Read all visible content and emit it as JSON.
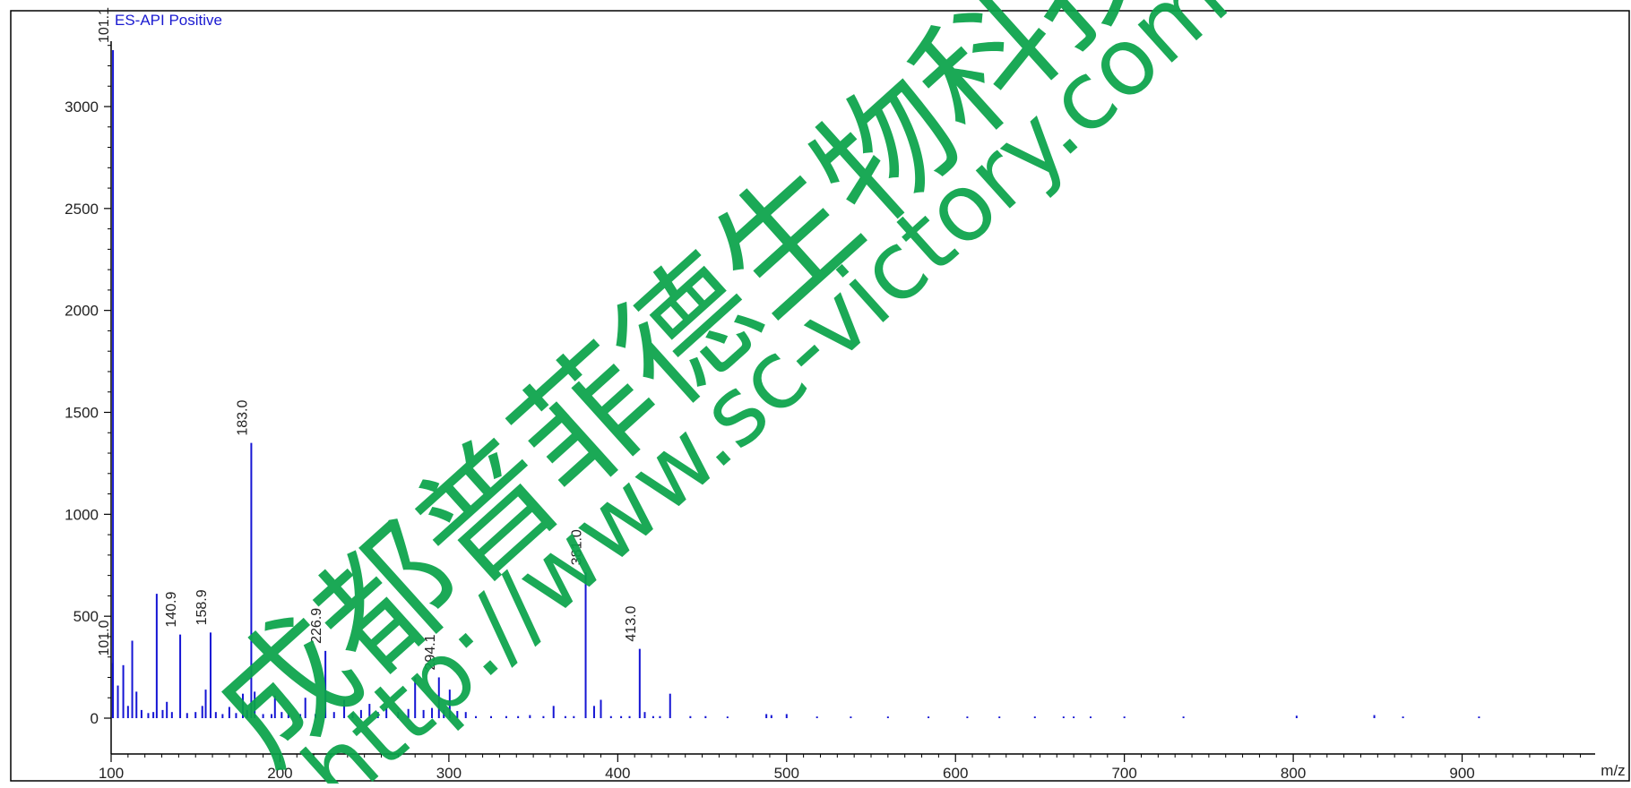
{
  "chart_data": {
    "type": "bar",
    "mode_label": "ES-API Positive",
    "xlabel": "m/z",
    "xlim": [
      100,
      1000
    ],
    "ylim": [
      -30,
      3350
    ],
    "x_ticks": [
      100,
      200,
      300,
      400,
      500,
      600,
      700,
      800,
      900
    ],
    "y_ticks": [
      0,
      500,
      1000,
      1500,
      2000,
      2500,
      3000
    ],
    "grid": false,
    "legend": "none",
    "colors": {
      "series": "#1515d4",
      "text": "#222222",
      "axis": "#000000",
      "watermark": "#0aa34a"
    },
    "peaks": [
      {
        "x": 101.1,
        "y": 3300,
        "label": "101.1"
      },
      {
        "x": 101.0,
        "y": 270,
        "label": "101.0"
      },
      {
        "x": 104.0,
        "y": 160
      },
      {
        "x": 107.2,
        "y": 260
      },
      {
        "x": 110.0,
        "y": 60
      },
      {
        "x": 112.5,
        "y": 380
      },
      {
        "x": 115.0,
        "y": 130
      },
      {
        "x": 118.0,
        "y": 40
      },
      {
        "x": 122.0,
        "y": 25
      },
      {
        "x": 125.0,
        "y": 30
      },
      {
        "x": 127.0,
        "y": 610
      },
      {
        "x": 130.5,
        "y": 40
      },
      {
        "x": 133.0,
        "y": 80
      },
      {
        "x": 136.0,
        "y": 30
      },
      {
        "x": 140.9,
        "y": 410,
        "label": "140.9"
      },
      {
        "x": 145.0,
        "y": 25
      },
      {
        "x": 150.0,
        "y": 30
      },
      {
        "x": 154.0,
        "y": 60
      },
      {
        "x": 156.0,
        "y": 140
      },
      {
        "x": 158.9,
        "y": 420,
        "label": "158.9"
      },
      {
        "x": 162.0,
        "y": 30
      },
      {
        "x": 166.0,
        "y": 20
      },
      {
        "x": 170.0,
        "y": 55
      },
      {
        "x": 174.0,
        "y": 25
      },
      {
        "x": 178.0,
        "y": 120
      },
      {
        "x": 180.5,
        "y": 40
      },
      {
        "x": 183.0,
        "y": 1350,
        "label": "183.0"
      },
      {
        "x": 185.0,
        "y": 130
      },
      {
        "x": 190.0,
        "y": 20
      },
      {
        "x": 195.0,
        "y": 20
      },
      {
        "x": 197.0,
        "y": 110
      },
      {
        "x": 201.0,
        "y": 30
      },
      {
        "x": 205.0,
        "y": 25
      },
      {
        "x": 212.0,
        "y": 20
      },
      {
        "x": 215.0,
        "y": 100
      },
      {
        "x": 221.0,
        "y": 20
      },
      {
        "x": 226.9,
        "y": 330,
        "label": "226.9"
      },
      {
        "x": 232.0,
        "y": 30
      },
      {
        "x": 238.0,
        "y": 90
      },
      {
        "x": 243.0,
        "y": 25
      },
      {
        "x": 248.0,
        "y": 40
      },
      {
        "x": 253.0,
        "y": 70
      },
      {
        "x": 258.0,
        "y": 30
      },
      {
        "x": 263.0,
        "y": 50
      },
      {
        "x": 270.0,
        "y": 30
      },
      {
        "x": 276.0,
        "y": 45
      },
      {
        "x": 280.0,
        "y": 200
      },
      {
        "x": 285.0,
        "y": 40
      },
      {
        "x": 290.0,
        "y": 50
      },
      {
        "x": 294.1,
        "y": 200,
        "label": "294.1"
      },
      {
        "x": 297.0,
        "y": 40
      },
      {
        "x": 300.5,
        "y": 140
      },
      {
        "x": 305.0,
        "y": 35
      },
      {
        "x": 310.0,
        "y": 30
      },
      {
        "x": 316.0,
        "y": 10
      },
      {
        "x": 325.0,
        "y": 10
      },
      {
        "x": 334.0,
        "y": 10
      },
      {
        "x": 341.0,
        "y": 10
      },
      {
        "x": 348.0,
        "y": 15
      },
      {
        "x": 356.0,
        "y": 10
      },
      {
        "x": 362.0,
        "y": 60
      },
      {
        "x": 369.0,
        "y": 10
      },
      {
        "x": 374.0,
        "y": 10
      },
      {
        "x": 381.0,
        "y": 715,
        "label": "381.0"
      },
      {
        "x": 386.0,
        "y": 60
      },
      {
        "x": 390.0,
        "y": 90
      },
      {
        "x": 396.0,
        "y": 10
      },
      {
        "x": 402.0,
        "y": 10
      },
      {
        "x": 407.0,
        "y": 10
      },
      {
        "x": 413.0,
        "y": 340,
        "label": "413.0"
      },
      {
        "x": 416.0,
        "y": 30
      },
      {
        "x": 421.0,
        "y": 10
      },
      {
        "x": 425.0,
        "y": 10
      },
      {
        "x": 431.0,
        "y": 120
      },
      {
        "x": 443.0,
        "y": 10
      },
      {
        "x": 452.0,
        "y": 10
      },
      {
        "x": 465.0,
        "y": 8
      },
      {
        "x": 488.0,
        "y": 20
      },
      {
        "x": 491.0,
        "y": 15
      },
      {
        "x": 500.0,
        "y": 20
      },
      {
        "x": 518.0,
        "y": 8
      },
      {
        "x": 538.0,
        "y": 8
      },
      {
        "x": 560.0,
        "y": 8
      },
      {
        "x": 584.0,
        "y": 8
      },
      {
        "x": 607.0,
        "y": 8
      },
      {
        "x": 626.0,
        "y": 8
      },
      {
        "x": 647.0,
        "y": 8
      },
      {
        "x": 664.0,
        "y": 8
      },
      {
        "x": 670.0,
        "y": 8
      },
      {
        "x": 680.0,
        "y": 8
      },
      {
        "x": 700.0,
        "y": 8
      },
      {
        "x": 735.0,
        "y": 8
      },
      {
        "x": 802.0,
        "y": 12
      },
      {
        "x": 848.0,
        "y": 15
      },
      {
        "x": 865.0,
        "y": 8
      },
      {
        "x": 910.0,
        "y": 8
      }
    ]
  },
  "watermark": {
    "company": "成都普菲德生物科技有限公司",
    "url": "http://www.sc-victory.com"
  }
}
